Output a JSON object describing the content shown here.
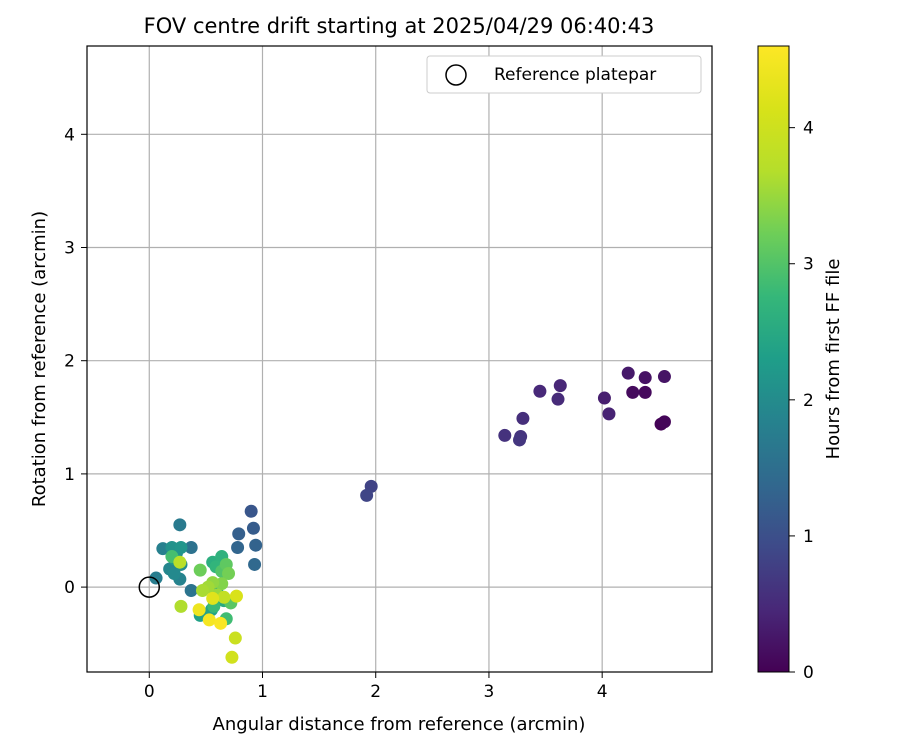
{
  "chart_data": {
    "type": "scatter",
    "title": "FOV centre drift starting at 2025/04/29 06:40:43",
    "xlabel": "Angular distance from reference (arcmin)",
    "ylabel": "Rotation from reference (arcmin)",
    "xlim": [
      -0.55,
      4.97
    ],
    "ylim": [
      -0.75,
      4.78
    ],
    "xticks": [
      0,
      1,
      2,
      3,
      4
    ],
    "yticks": [
      0,
      1,
      2,
      3,
      4
    ],
    "grid": true,
    "legend": {
      "position": "top-right",
      "entries": [
        {
          "label": "Reference platepar",
          "marker": "open-circle"
        }
      ]
    },
    "reference_point": {
      "x": 0,
      "y": 0
    },
    "colorbar": {
      "label": "Hours from first FF file",
      "colormap": "viridis",
      "range": [
        0,
        4.6
      ],
      "ticks": [
        0,
        1,
        2,
        3,
        4
      ]
    },
    "points": [
      {
        "x": 4.52,
        "y": 1.44,
        "h": 0.02
      },
      {
        "x": 4.55,
        "y": 1.46,
        "h": 0.05
      },
      {
        "x": 4.38,
        "y": 1.72,
        "h": 0.1
      },
      {
        "x": 4.27,
        "y": 1.72,
        "h": 0.12
      },
      {
        "x": 4.38,
        "y": 1.85,
        "h": 0.2
      },
      {
        "x": 4.55,
        "y": 1.86,
        "h": 0.22
      },
      {
        "x": 4.23,
        "y": 1.89,
        "h": 0.28
      },
      {
        "x": 4.02,
        "y": 1.67,
        "h": 0.35
      },
      {
        "x": 4.06,
        "y": 1.53,
        "h": 0.4
      },
      {
        "x": 3.63,
        "y": 1.78,
        "h": 0.45
      },
      {
        "x": 3.45,
        "y": 1.73,
        "h": 0.48
      },
      {
        "x": 3.61,
        "y": 1.66,
        "h": 0.5
      },
      {
        "x": 3.3,
        "y": 1.49,
        "h": 0.55
      },
      {
        "x": 3.14,
        "y": 1.34,
        "h": 0.6
      },
      {
        "x": 3.28,
        "y": 1.33,
        "h": 0.62
      },
      {
        "x": 3.27,
        "y": 1.3,
        "h": 0.65
      },
      {
        "x": 1.96,
        "y": 0.89,
        "h": 0.82
      },
      {
        "x": 1.92,
        "y": 0.81,
        "h": 0.85
      },
      {
        "x": 0.9,
        "y": 0.67,
        "h": 1.1
      },
      {
        "x": 0.92,
        "y": 0.52,
        "h": 1.2
      },
      {
        "x": 0.79,
        "y": 0.47,
        "h": 1.25
      },
      {
        "x": 0.94,
        "y": 0.37,
        "h": 1.3
      },
      {
        "x": 0.78,
        "y": 0.35,
        "h": 1.35
      },
      {
        "x": 0.93,
        "y": 0.2,
        "h": 1.4
      },
      {
        "x": 0.37,
        "y": 0.35,
        "h": 1.55
      },
      {
        "x": 0.37,
        "y": -0.03,
        "h": 1.6
      },
      {
        "x": 0.27,
        "y": 0.55,
        "h": 1.7
      },
      {
        "x": 0.06,
        "y": 0.08,
        "h": 1.75
      },
      {
        "x": 0.12,
        "y": 0.34,
        "h": 1.8
      },
      {
        "x": 0.27,
        "y": 0.07,
        "h": 1.85
      },
      {
        "x": 0.18,
        "y": 0.16,
        "h": 1.9
      },
      {
        "x": 0.22,
        "y": 0.12,
        "h": 1.95
      },
      {
        "x": 0.28,
        "y": 0.2,
        "h": 2.0
      },
      {
        "x": 0.24,
        "y": 0.3,
        "h": 2.05
      },
      {
        "x": 0.2,
        "y": 0.35,
        "h": 2.1
      },
      {
        "x": 0.28,
        "y": 0.35,
        "h": 2.15
      },
      {
        "x": 0.22,
        "y": 0.25,
        "h": 2.2
      },
      {
        "x": 0.45,
        "y": -0.25,
        "h": 2.35
      },
      {
        "x": 0.55,
        "y": -0.2,
        "h": 2.4
      },
      {
        "x": 0.6,
        "y": -0.05,
        "h": 2.45
      },
      {
        "x": 0.66,
        "y": -0.12,
        "h": 2.5
      },
      {
        "x": 0.56,
        "y": 0.22,
        "h": 2.6
      },
      {
        "x": 0.64,
        "y": 0.27,
        "h": 2.65
      },
      {
        "x": 0.59,
        "y": 0.18,
        "h": 2.7
      },
      {
        "x": 0.57,
        "y": -0.17,
        "h": 2.8
      },
      {
        "x": 0.68,
        "y": -0.28,
        "h": 2.85
      },
      {
        "x": 0.2,
        "y": 0.27,
        "h": 2.9
      },
      {
        "x": 0.64,
        "y": 0.14,
        "h": 3.0
      },
      {
        "x": 0.72,
        "y": -0.14,
        "h": 3.05
      },
      {
        "x": 0.68,
        "y": 0.2,
        "h": 3.1
      },
      {
        "x": 0.45,
        "y": 0.15,
        "h": 3.2
      },
      {
        "x": 0.7,
        "y": 0.12,
        "h": 3.25
      },
      {
        "x": 0.64,
        "y": 0.03,
        "h": 3.35
      },
      {
        "x": 0.56,
        "y": 0.04,
        "h": 3.45
      },
      {
        "x": 0.6,
        "y": -0.07,
        "h": 3.5
      },
      {
        "x": 0.52,
        "y": 0.0,
        "h": 3.55
      },
      {
        "x": 0.47,
        "y": -0.03,
        "h": 3.6
      },
      {
        "x": 0.28,
        "y": -0.17,
        "h": 3.65
      },
      {
        "x": 0.27,
        "y": 0.22,
        "h": 3.75
      },
      {
        "x": 0.66,
        "y": -0.09,
        "h": 3.85
      },
      {
        "x": 0.76,
        "y": -0.45,
        "h": 3.95
      },
      {
        "x": 0.73,
        "y": -0.62,
        "h": 4.05
      },
      {
        "x": 0.77,
        "y": -0.08,
        "h": 4.15
      },
      {
        "x": 0.56,
        "y": -0.1,
        "h": 4.25
      },
      {
        "x": 0.44,
        "y": -0.2,
        "h": 4.4
      },
      {
        "x": 0.53,
        "y": -0.29,
        "h": 4.5
      },
      {
        "x": 0.63,
        "y": -0.32,
        "h": 4.55
      }
    ]
  }
}
